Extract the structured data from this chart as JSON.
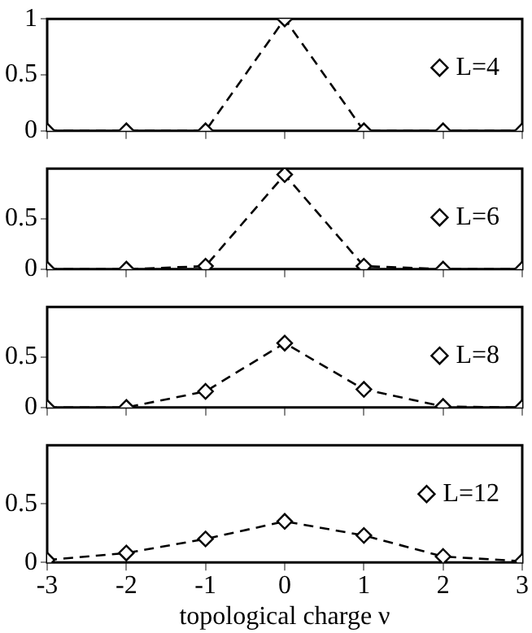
{
  "chart_data": [
    {
      "type": "line",
      "x": [
        -3,
        -2,
        -1,
        0,
        1,
        2,
        3
      ],
      "xlim": [
        -3,
        3
      ],
      "xticks": [
        -3,
        -2,
        -1,
        0,
        1,
        2,
        3
      ],
      "ylim": [
        0,
        1
      ],
      "yticks": [
        0,
        0.5,
        1
      ],
      "tick_labels": "y",
      "marker": "diamond",
      "line_style": "dashed",
      "legend": "top right",
      "series": [
        {
          "name": "L=4",
          "color": "#000000",
          "values": [
            0,
            0,
            0,
            1,
            0,
            0,
            0
          ]
        }
      ]
    },
    {
      "type": "line",
      "x": [
        -3,
        -2,
        -1,
        0,
        1,
        2,
        3
      ],
      "xlim": [
        -3,
        3
      ],
      "xticks": [
        -3,
        -2,
        -1,
        0,
        1,
        2,
        3
      ],
      "ylim": [
        0,
        1
      ],
      "yticks": [
        0,
        0.5
      ],
      "tick_labels": "y",
      "marker": "diamond",
      "line_style": "dashed",
      "legend": "top right",
      "series": [
        {
          "name": "L=6",
          "color": "#000000",
          "values": [
            0,
            0,
            0.03,
            0.94,
            0.03,
            0,
            0
          ]
        }
      ]
    },
    {
      "type": "line",
      "x": [
        -3,
        -2,
        -1,
        0,
        1,
        2,
        3
      ],
      "xlim": [
        -3,
        3
      ],
      "xticks": [
        -3,
        -2,
        -1,
        0,
        1,
        2,
        3
      ],
      "ylim": [
        0,
        1
      ],
      "yticks": [
        0,
        0.5
      ],
      "tick_labels": "y",
      "marker": "diamond",
      "line_style": "dashed",
      "legend": "top right",
      "series": [
        {
          "name": "L=8",
          "color": "#000000",
          "values": [
            0,
            0,
            0.16,
            0.64,
            0.18,
            0.01,
            0
          ]
        }
      ]
    },
    {
      "type": "line",
      "x": [
        -3,
        -2,
        -1,
        0,
        1,
        2,
        3
      ],
      "xlim": [
        -3,
        3
      ],
      "xticks": [
        -3,
        -2,
        -1,
        0,
        1,
        2,
        3
      ],
      "ylim": [
        0,
        1
      ],
      "yticks": [
        0,
        0.5
      ],
      "xlabel": "topological charge ν",
      "marker": "diamond",
      "line_style": "dashed",
      "legend": "top right",
      "series": [
        {
          "name": "L=12",
          "color": "#000000",
          "values": [
            0.02,
            0.08,
            0.2,
            0.35,
            0.23,
            0.05,
            0.01
          ]
        }
      ]
    }
  ]
}
